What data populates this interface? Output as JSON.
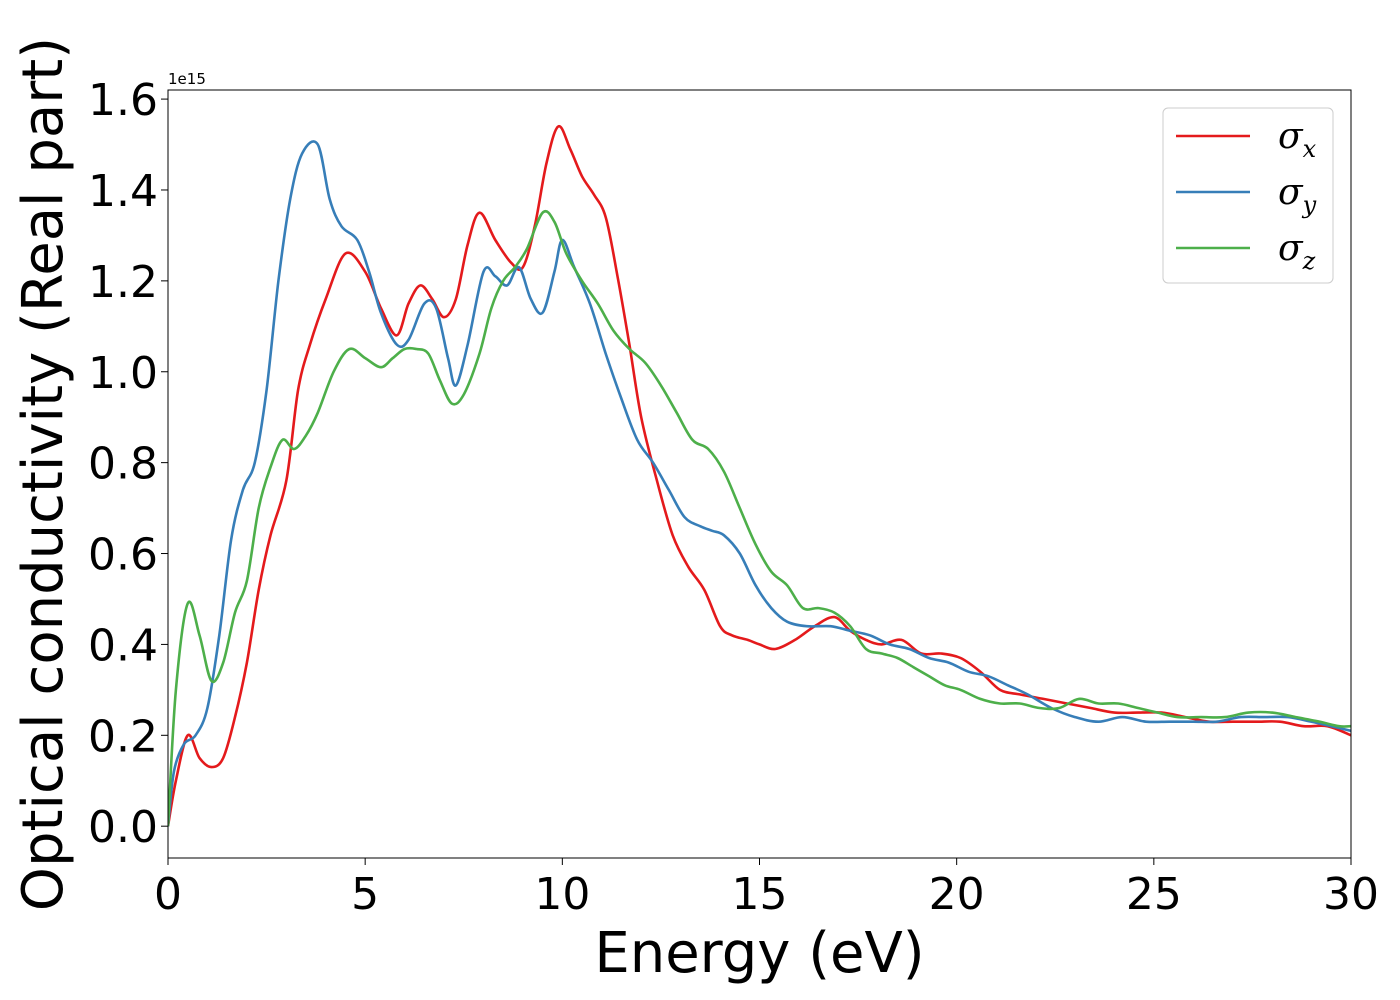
{
  "chart_data": {
    "type": "line",
    "xlabel": "Energy (eV)",
    "ylabel": "Optical conductivity (Real part)",
    "y_offset_label": "1e15",
    "xlim": [
      0,
      30
    ],
    "ylim": [
      -0.07,
      1.62
    ],
    "x_ticks": [
      "0",
      "5",
      "10",
      "15",
      "20",
      "25",
      "30"
    ],
    "y_ticks": [
      "0.0",
      "0.2",
      "0.4",
      "0.6",
      "0.8",
      "1.0",
      "1.2",
      "1.4",
      "1.6"
    ],
    "grid": false,
    "legend_position": "top-right",
    "series": [
      {
        "name": "σ",
        "subscript": "x",
        "color": "#e41a1c",
        "x": [
          0,
          0.2,
          0.5,
          0.8,
          1.1,
          1.4,
          1.7,
          2.0,
          2.3,
          2.6,
          3.0,
          3.3,
          3.6,
          4.0,
          4.5,
          5.0,
          5.4,
          5.8,
          6.1,
          6.4,
          6.7,
          7.0,
          7.3,
          7.6,
          7.9,
          8.3,
          8.7,
          9.0,
          9.3,
          9.6,
          9.9,
          10.2,
          10.5,
          10.8,
          11.1,
          11.4,
          11.7,
          12.0,
          12.4,
          12.8,
          13.2,
          13.6,
          14.0,
          14.3,
          14.7,
          15.0,
          15.4,
          15.9,
          16.4,
          16.9,
          17.3,
          17.7,
          18.1,
          18.6,
          19.1,
          19.6,
          20.1,
          20.6,
          21.1,
          21.6,
          22.2,
          22.8,
          23.4,
          24.0,
          24.6,
          25.2,
          25.8,
          26.4,
          27.0,
          27.6,
          28.2,
          28.8,
          29.4,
          30.0
        ],
        "y": [
          0.0,
          0.1,
          0.2,
          0.15,
          0.13,
          0.15,
          0.24,
          0.36,
          0.52,
          0.64,
          0.76,
          0.96,
          1.06,
          1.16,
          1.26,
          1.22,
          1.14,
          1.08,
          1.15,
          1.19,
          1.16,
          1.12,
          1.16,
          1.28,
          1.35,
          1.29,
          1.24,
          1.23,
          1.32,
          1.46,
          1.54,
          1.49,
          1.43,
          1.39,
          1.34,
          1.21,
          1.06,
          0.9,
          0.76,
          0.64,
          0.57,
          0.52,
          0.44,
          0.42,
          0.41,
          0.4,
          0.39,
          0.41,
          0.44,
          0.46,
          0.43,
          0.41,
          0.4,
          0.41,
          0.38,
          0.38,
          0.37,
          0.34,
          0.3,
          0.29,
          0.28,
          0.27,
          0.26,
          0.25,
          0.25,
          0.25,
          0.24,
          0.23,
          0.23,
          0.23,
          0.23,
          0.22,
          0.22,
          0.2
        ]
      },
      {
        "name": "σ",
        "subscript": "y",
        "color": "#377eb8",
        "x": [
          0,
          0.15,
          0.4,
          0.7,
          1.0,
          1.3,
          1.6,
          1.9,
          2.2,
          2.5,
          2.8,
          3.1,
          3.4,
          3.8,
          4.1,
          4.4,
          4.8,
          5.1,
          5.4,
          5.8,
          6.1,
          6.5,
          6.8,
          7.1,
          7.3,
          7.6,
          8.0,
          8.3,
          8.6,
          8.9,
          9.2,
          9.5,
          9.8,
          10.0,
          10.3,
          10.7,
          11.1,
          11.5,
          11.9,
          12.3,
          12.7,
          13.1,
          13.5,
          13.8,
          14.1,
          14.5,
          14.9,
          15.3,
          15.7,
          16.2,
          16.8,
          17.3,
          17.8,
          18.3,
          18.8,
          19.3,
          19.8,
          20.3,
          20.8,
          21.3,
          21.8,
          22.4,
          23.0,
          23.6,
          24.2,
          24.8,
          25.4,
          26.0,
          26.6,
          27.2,
          27.8,
          28.4,
          29.0,
          29.5,
          30.0
        ],
        "y": [
          0.0,
          0.12,
          0.18,
          0.2,
          0.26,
          0.42,
          0.63,
          0.74,
          0.8,
          0.96,
          1.2,
          1.38,
          1.48,
          1.5,
          1.38,
          1.32,
          1.29,
          1.22,
          1.13,
          1.06,
          1.07,
          1.15,
          1.14,
          1.03,
          0.97,
          1.06,
          1.22,
          1.21,
          1.19,
          1.23,
          1.16,
          1.13,
          1.22,
          1.29,
          1.23,
          1.15,
          1.04,
          0.94,
          0.85,
          0.8,
          0.74,
          0.68,
          0.66,
          0.65,
          0.64,
          0.6,
          0.53,
          0.48,
          0.45,
          0.44,
          0.44,
          0.43,
          0.42,
          0.4,
          0.39,
          0.37,
          0.36,
          0.34,
          0.33,
          0.31,
          0.29,
          0.26,
          0.24,
          0.23,
          0.24,
          0.23,
          0.23,
          0.23,
          0.23,
          0.24,
          0.24,
          0.24,
          0.23,
          0.22,
          0.21
        ]
      },
      {
        "name": "σ",
        "subscript": "z",
        "color": "#4daf4a",
        "x": [
          0,
          0.2,
          0.5,
          0.8,
          1.1,
          1.4,
          1.7,
          2.0,
          2.3,
          2.6,
          2.9,
          3.2,
          3.5,
          3.8,
          4.2,
          4.6,
          5.0,
          5.4,
          5.7,
          6.0,
          6.3,
          6.6,
          6.9,
          7.2,
          7.5,
          7.9,
          8.2,
          8.5,
          8.8,
          9.1,
          9.5,
          9.8,
          10.1,
          10.5,
          10.9,
          11.3,
          11.7,
          12.1,
          12.5,
          12.9,
          13.3,
          13.7,
          14.1,
          14.5,
          14.9,
          15.3,
          15.7,
          16.1,
          16.5,
          16.9,
          17.3,
          17.7,
          18.1,
          18.5,
          18.9,
          19.3,
          19.7,
          20.1,
          20.6,
          21.1,
          21.6,
          22.1,
          22.6,
          23.1,
          23.6,
          24.1,
          24.6,
          25.1,
          25.6,
          26.2,
          26.8,
          27.4,
          28.0,
          28.6,
          29.2,
          29.7,
          30.0
        ],
        "y": [
          0.0,
          0.3,
          0.49,
          0.42,
          0.32,
          0.36,
          0.47,
          0.54,
          0.7,
          0.79,
          0.85,
          0.83,
          0.86,
          0.91,
          1.0,
          1.05,
          1.03,
          1.01,
          1.03,
          1.05,
          1.05,
          1.04,
          0.98,
          0.93,
          0.95,
          1.04,
          1.14,
          1.2,
          1.23,
          1.27,
          1.35,
          1.33,
          1.26,
          1.2,
          1.15,
          1.09,
          1.05,
          1.02,
          0.97,
          0.91,
          0.85,
          0.83,
          0.78,
          0.7,
          0.62,
          0.56,
          0.53,
          0.48,
          0.48,
          0.47,
          0.44,
          0.39,
          0.38,
          0.37,
          0.35,
          0.33,
          0.31,
          0.3,
          0.28,
          0.27,
          0.27,
          0.26,
          0.26,
          0.28,
          0.27,
          0.27,
          0.26,
          0.25,
          0.24,
          0.24,
          0.24,
          0.25,
          0.25,
          0.24,
          0.23,
          0.22,
          0.22
        ]
      }
    ]
  }
}
